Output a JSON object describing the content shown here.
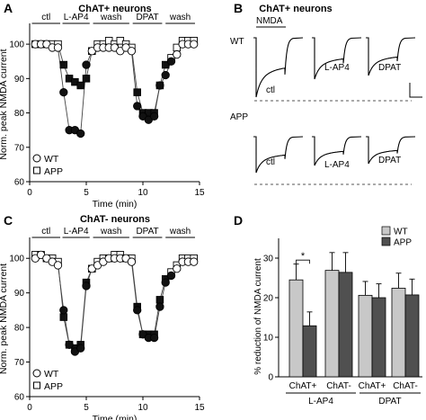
{
  "panels": {
    "A": {
      "letter": "A",
      "title": "ChAT+ neurons"
    },
    "B": {
      "letter": "B",
      "title": "ChAT+ neurons"
    },
    "C": {
      "letter": "C",
      "title": "ChAT- neurons"
    },
    "D": {
      "letter": "D"
    }
  },
  "chart_data": [
    {
      "panel": "A",
      "type": "scatter",
      "title": "ChAT+ neurons",
      "xlabel": "Time (min)",
      "ylabel": "Norm. peak NMDA current",
      "xlim": [
        0,
        15
      ],
      "ylim": [
        60,
        105
      ],
      "xticks": [
        "0",
        "5",
        "10",
        "15"
      ],
      "yticks": [
        "60",
        "70",
        "80",
        "90",
        "100"
      ],
      "epochs": [
        "ctl",
        "L-AP4",
        "wash",
        "DPAT",
        "wash"
      ],
      "legend": [
        "WT",
        "APP"
      ],
      "legend_position": "bottom-left",
      "series": [
        {
          "name": "WT",
          "marker": "circle",
          "x": [
            0.5,
            1,
            1.5,
            2,
            2.5,
            3,
            3.5,
            4,
            4.5,
            5,
            5.5,
            6,
            6.5,
            7,
            7.5,
            8,
            8.5,
            9,
            9.5,
            10,
            10.5,
            11,
            11.5,
            12,
            12.5,
            13,
            13.5,
            14,
            14.5
          ],
          "y": [
            100,
            100,
            100,
            99,
            99,
            86,
            75,
            75,
            74,
            94,
            98,
            99,
            99,
            99,
            99,
            98,
            99,
            98,
            82,
            79,
            78,
            79,
            88,
            91,
            95,
            97,
            100,
            100,
            100
          ]
        },
        {
          "name": "APP",
          "marker": "square",
          "x": [
            0.5,
            1,
            1.5,
            2,
            2.5,
            3,
            3.5,
            4,
            4.5,
            5,
            5.5,
            6,
            6.5,
            7,
            7.5,
            8,
            8.5,
            9,
            9.5,
            10,
            10.5,
            11,
            11.5,
            12,
            12.5,
            13,
            13.5,
            14,
            14.5
          ],
          "y": [
            100,
            100,
            100,
            100,
            100,
            94,
            90,
            89,
            88,
            90,
            98,
            100,
            100,
            101,
            100,
            101,
            100,
            99,
            86,
            80,
            80,
            80,
            88,
            94,
            96,
            99,
            101,
            101,
            101
          ]
        }
      ]
    },
    {
      "panel": "B",
      "type": "line",
      "title": "ChAT+ neurons",
      "stimulus_label": "NMDA",
      "rows": [
        {
          "genotype": "WT",
          "traces": [
            "ctl",
            "L-AP4",
            "DPAT"
          ]
        },
        {
          "genotype": "APP",
          "traces": [
            "ctl",
            "L-AP4",
            "DPAT"
          ]
        }
      ]
    },
    {
      "panel": "C",
      "type": "scatter",
      "title": "ChAT- neurons",
      "xlabel": "Time (min)",
      "ylabel": "Norm. peak NMDA current",
      "xlim": [
        0,
        15
      ],
      "ylim": [
        60,
        105
      ],
      "xticks": [
        "0",
        "5",
        "10",
        "15"
      ],
      "yticks": [
        "60",
        "70",
        "80",
        "90",
        "100"
      ],
      "epochs": [
        "ctl",
        "L-AP4",
        "wash",
        "DPAT",
        "wash"
      ],
      "legend": [
        "WT",
        "APP"
      ],
      "legend_position": "bottom-left",
      "series": [
        {
          "name": "WT",
          "marker": "circle",
          "x": [
            0.5,
            1,
            1.5,
            2,
            2.5,
            3,
            3.5,
            4,
            4.5,
            5,
            5.5,
            6,
            6.5,
            7,
            7.5,
            8,
            8.5,
            9,
            9.5,
            10,
            10.5,
            11,
            11.5,
            12,
            12.5,
            13,
            13.5,
            14,
            14.5
          ],
          "y": [
            100,
            101,
            100,
            99,
            98,
            85,
            75,
            73,
            74,
            92,
            97,
            98,
            99,
            100,
            100,
            100,
            100,
            99,
            85,
            78,
            77,
            77,
            86,
            93,
            95,
            97,
            99,
            99,
            99
          ]
        },
        {
          "name": "APP",
          "marker": "square",
          "x": [
            0.5,
            1,
            1.5,
            2,
            2.5,
            3,
            3.5,
            4,
            4.5,
            5,
            5.5,
            6,
            6.5,
            7,
            7.5,
            8,
            8.5,
            9,
            9.5,
            10,
            10.5,
            11,
            11.5,
            12,
            12.5,
            13,
            13.5,
            14,
            14.5
          ],
          "y": [
            101,
            101,
            100,
            100,
            99,
            83,
            75,
            74,
            75,
            93,
            97,
            99,
            100,
            100,
            101,
            101,
            100,
            100,
            86,
            78,
            78,
            78,
            88,
            94,
            96,
            98,
            100,
            100,
            100
          ]
        }
      ]
    },
    {
      "panel": "D",
      "type": "bar",
      "ylabel": "% reduction of NMDA current",
      "ylim": [
        0,
        35
      ],
      "yticks": [
        "0",
        "10",
        "20",
        "30"
      ],
      "categories": [
        "ChAT+",
        "ChAT-",
        "ChAT+",
        "ChAT-"
      ],
      "groups": [
        {
          "label": "L-AP4",
          "categories": [
            0,
            1
          ]
        },
        {
          "label": "DPAT",
          "categories": [
            2,
            3
          ]
        }
      ],
      "legend_position": "top-right",
      "significance": {
        "category": 0,
        "label": "*"
      },
      "series": [
        {
          "name": "WT",
          "color": "#c8c8c8",
          "values": [
            24.5,
            26.9,
            20.6,
            22.4
          ],
          "errors": [
            4,
            4.5,
            3.5,
            3.8
          ]
        },
        {
          "name": "APP",
          "color": "#505050",
          "values": [
            12.9,
            26.4,
            20.0,
            20.7
          ],
          "errors": [
            3.5,
            5,
            3.5,
            4
          ]
        }
      ]
    }
  ]
}
